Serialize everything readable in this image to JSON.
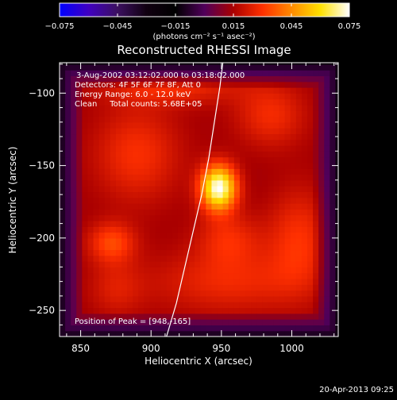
{
  "chart_data": {
    "type": "heatmap",
    "title": "Reconstructed RHESSI Image",
    "xlabel": "Heliocentric X (arcsec)",
    "ylabel": "Heliocentric Y (arcsec)",
    "xlim": [
      835,
      1033
    ],
    "ylim": [
      -268,
      -79
    ],
    "x_ticks": [
      850,
      900,
      950,
      1000
    ],
    "y_ticks": [
      -250,
      -200,
      -150,
      -100
    ],
    "colorbar": {
      "label": "(photons cm⁻² s⁻¹ asec⁻²)",
      "ticks": [
        -0.075,
        -0.045,
        -0.015,
        0.015,
        0.045,
        0.075
      ],
      "tick_labels": [
        "−0.075",
        "−0.045",
        "−0.015",
        "0.015",
        "0.045",
        "0.075"
      ],
      "range": [
        -0.075,
        0.075
      ],
      "colors": [
        "#0000ff",
        "#4000c0",
        "#3c1060",
        "#100010",
        "#000000",
        "#50005a",
        "#aa0000",
        "#ff3000",
        "#ff8a00",
        "#ffe000",
        "#ffffff"
      ]
    },
    "annotations": [
      "3-Aug-2002 03:12:02.000 to 03:18:02.000",
      "Detectors: 4F 5F 6F 7F 8F, Att 0",
      "Energy Range: 6.0 - 12.0 keV",
      "Clean     Total counts: 5.68E+05"
    ],
    "peak_label": "Position of Peak = [948,-165]",
    "peak": {
      "x": 948,
      "y": -165,
      "value": 0.075
    },
    "background_level": 0.013,
    "emission_sources": [
      {
        "x": 948,
        "y": -165,
        "sx": 9,
        "sy": 11,
        "amp": 0.062
      },
      {
        "x": 872,
        "y": -203,
        "sx": 12,
        "sy": 10,
        "amp": 0.02
      },
      {
        "x": 890,
        "y": -142,
        "sx": 22,
        "sy": 24,
        "amp": 0.016
      },
      {
        "x": 915,
        "y": -95,
        "sx": 35,
        "sy": 9,
        "amp": 0.015
      },
      {
        "x": 985,
        "y": -115,
        "sx": 18,
        "sy": 16,
        "amp": 0.015
      },
      {
        "x": 1005,
        "y": -200,
        "sx": 16,
        "sy": 25,
        "amp": 0.016
      },
      {
        "x": 955,
        "y": -230,
        "sx": 40,
        "sy": 16,
        "amp": 0.014
      },
      {
        "x": 875,
        "y": -235,
        "sx": 14,
        "sy": 14,
        "amp": 0.01
      },
      {
        "x": 955,
        "y": -200,
        "sx": 16,
        "sy": 13,
        "amp": 0.014
      }
    ],
    "limb_curve": [
      {
        "x": 911,
        "y": -268
      },
      {
        "x": 918,
        "y": -245
      },
      {
        "x": 924,
        "y": -220
      },
      {
        "x": 930,
        "y": -195
      },
      {
        "x": 936,
        "y": -170
      },
      {
        "x": 941,
        "y": -145
      },
      {
        "x": 945,
        "y": -120
      },
      {
        "x": 949,
        "y": -95
      },
      {
        "x": 951,
        "y": -79
      }
    ]
  },
  "footer": {
    "timestamp": "20-Apr-2013 09:25"
  }
}
